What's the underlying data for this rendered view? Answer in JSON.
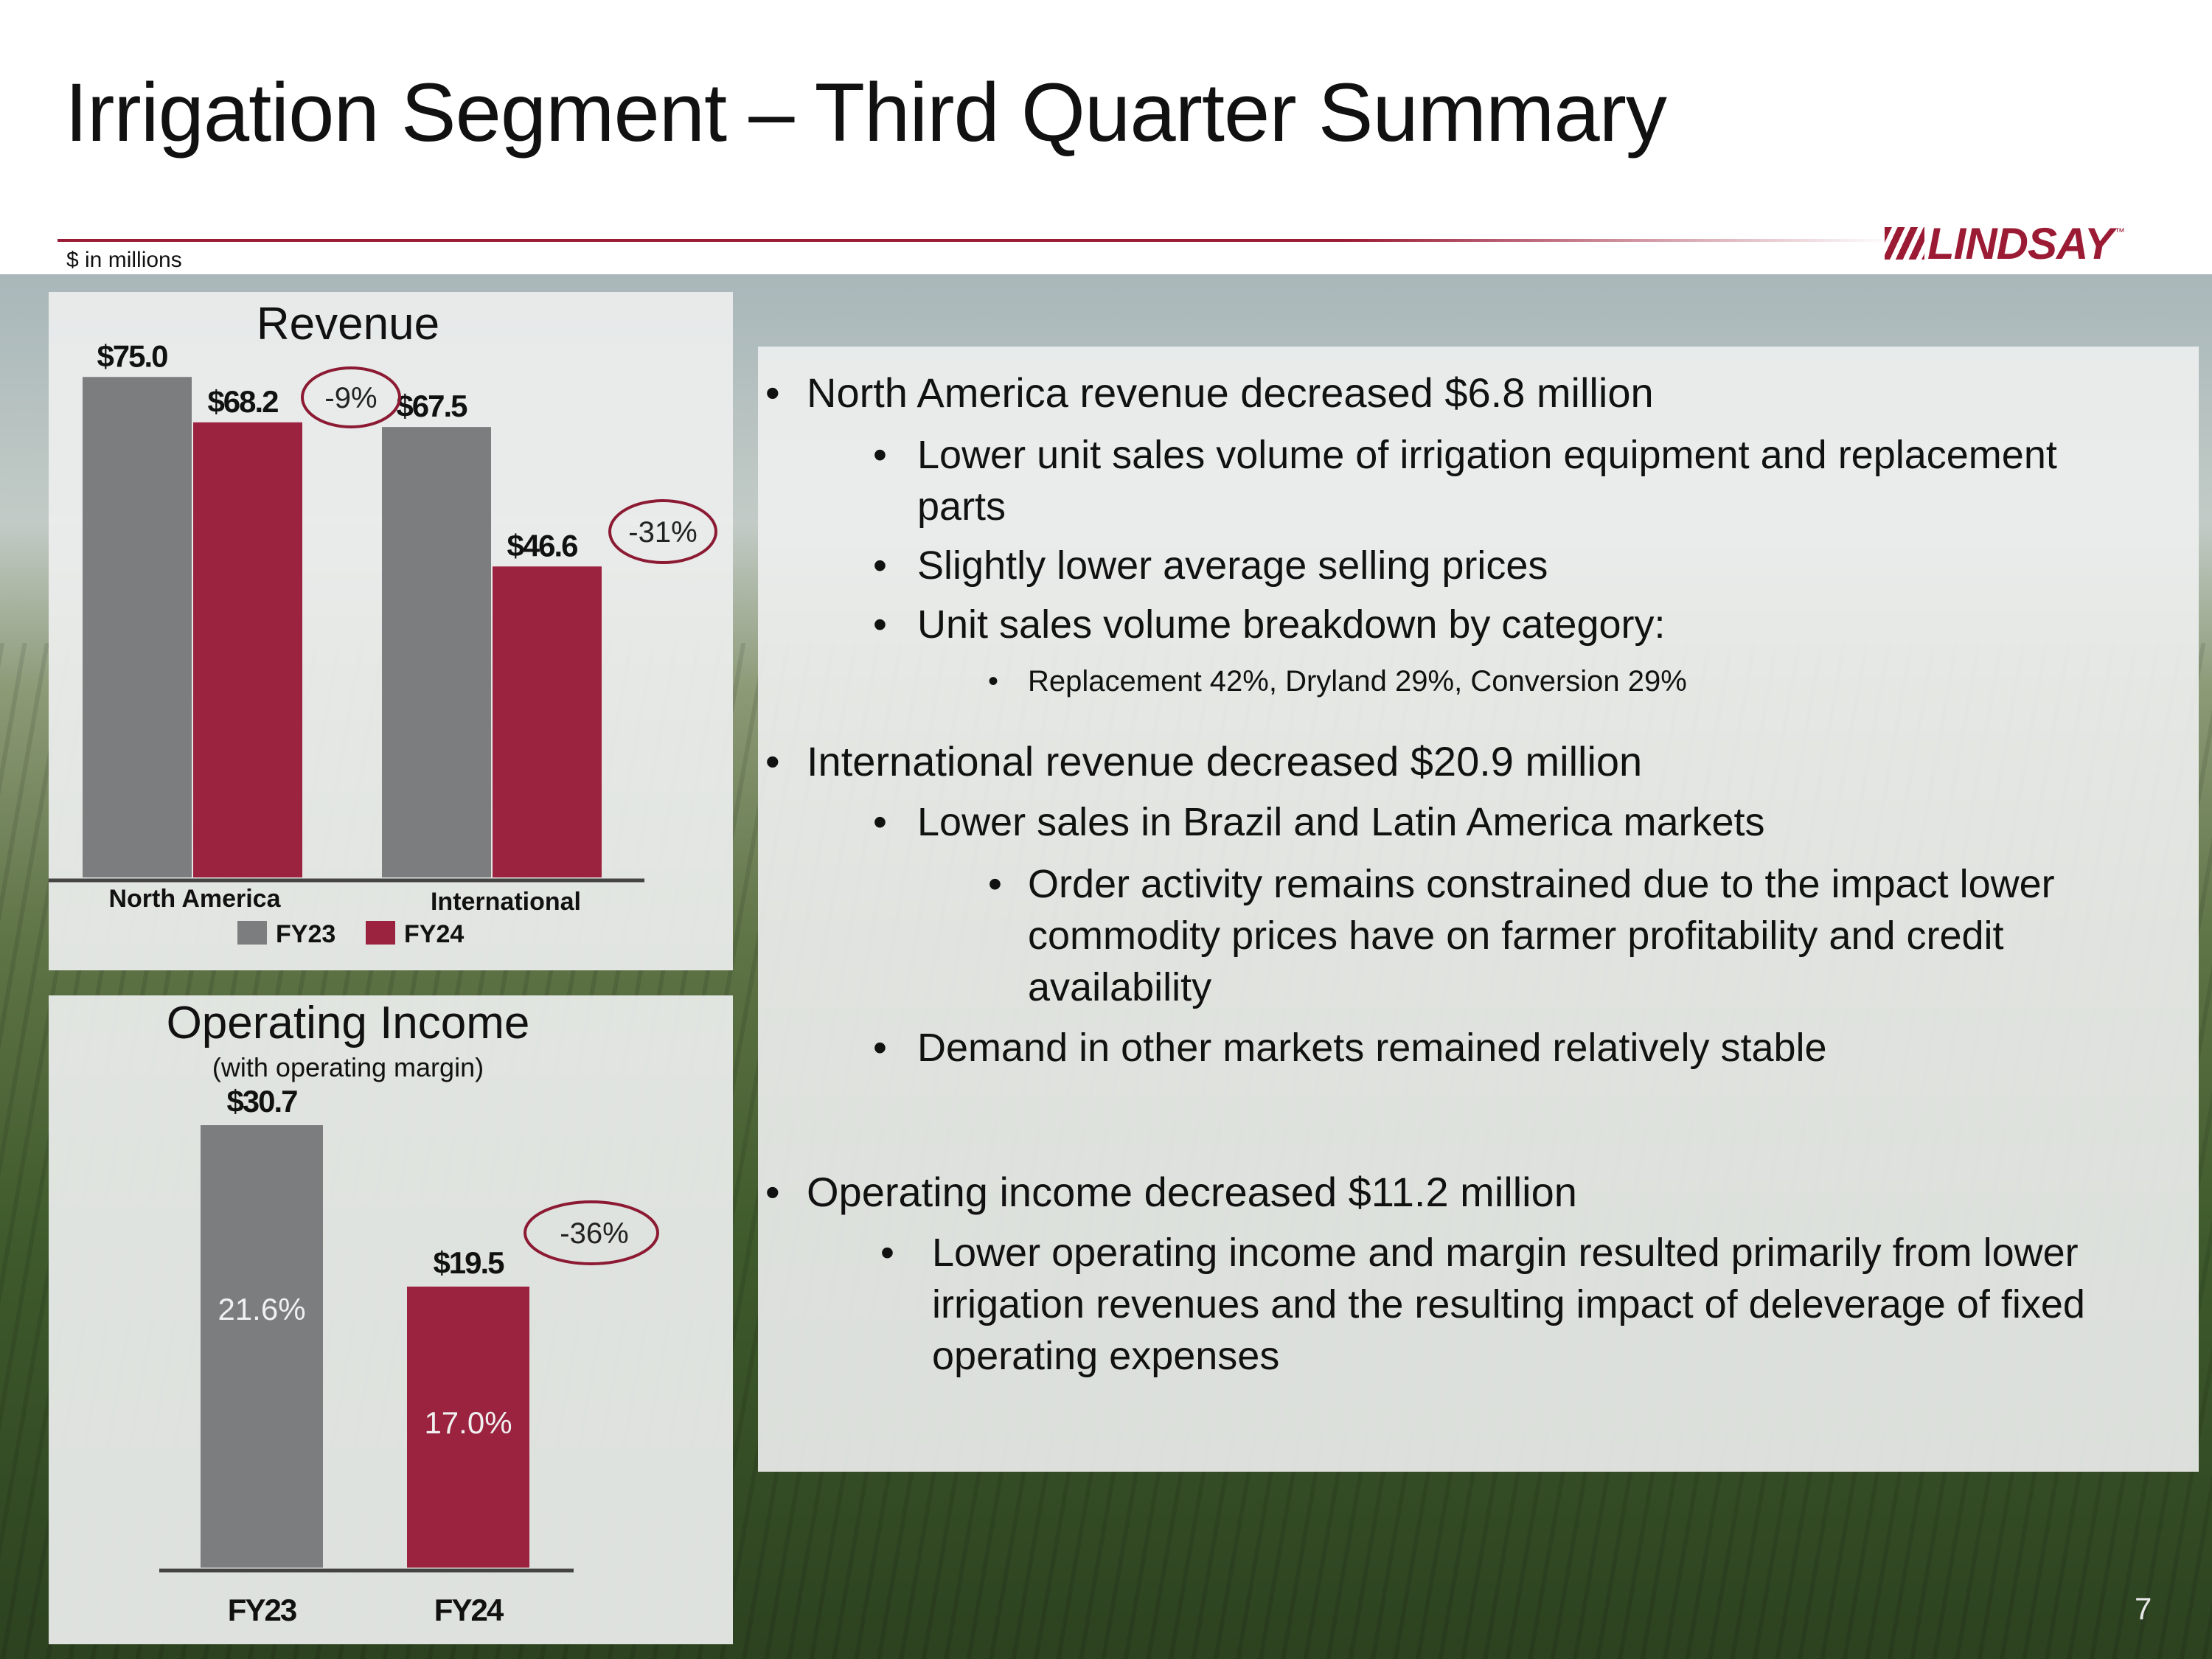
{
  "slide": {
    "title": "Irrigation Segment – Third Quarter Summary",
    "units_note": "$ in millions",
    "logo_text": "LINDSAY",
    "logo_tm": "™",
    "page_number": "7"
  },
  "colors": {
    "fy23": "#7b7d7e",
    "fy24": "#9b2340",
    "accent": "#9b1b34",
    "circle": "#8c1a33"
  },
  "chart_data": [
    {
      "type": "bar",
      "title": "Revenue",
      "categories": [
        "North America",
        "International"
      ],
      "series": [
        {
          "name": "FY23",
          "values": [
            75.0,
            67.5
          ],
          "labels": [
            "$75.0",
            "$67.5"
          ]
        },
        {
          "name": "FY24",
          "values": [
            68.2,
            46.6
          ],
          "labels": [
            "$68.2",
            "$46.6"
          ]
        }
      ],
      "change_labels": [
        "-9%",
        "-31%"
      ],
      "ylim": [
        0,
        80
      ],
      "legend": "bottom"
    },
    {
      "type": "bar",
      "title": "Operating Income",
      "subtitle": "(with operating margin)",
      "categories": [
        "FY23",
        "FY24"
      ],
      "values": [
        30.7,
        19.5
      ],
      "labels": [
        "$30.7",
        "$19.5"
      ],
      "margins": [
        "21.6%",
        "17.0%"
      ],
      "change_labels": [
        "-36%"
      ],
      "ylim": [
        0,
        32
      ]
    }
  ],
  "bullets": [
    {
      "level": 1,
      "text": "North America revenue decreased $6.8 million"
    },
    {
      "level": 2,
      "lines": [
        "Lower unit sales volume of irrigation equipment and replacement",
        "parts"
      ]
    },
    {
      "level": 2,
      "text": "Slightly lower average selling prices"
    },
    {
      "level": 2,
      "text": "Unit sales volume breakdown by category:"
    },
    {
      "level": 3,
      "text": "Replacement 42%, Dryland 29%, Conversion 29%"
    },
    {
      "level": 1,
      "text": "International revenue decreased $20.9 million"
    },
    {
      "level": 2,
      "text": "Lower sales in Brazil and Latin America markets"
    },
    {
      "level": 3,
      "lines": [
        "Order activity remains constrained due to the impact lower",
        "commodity prices have on farmer profitability and credit",
        "availability"
      ]
    },
    {
      "level": 2,
      "text": "Demand in other markets remained relatively stable"
    },
    {
      "level": 1,
      "text": "Operating income decreased $11.2 million"
    },
    {
      "level": 2,
      "lines": [
        "Lower operating income and margin resulted primarily from lower",
        "irrigation revenues and the resulting impact of deleverage of fixed",
        "operating expenses"
      ]
    }
  ],
  "bullet_glyph": "•"
}
